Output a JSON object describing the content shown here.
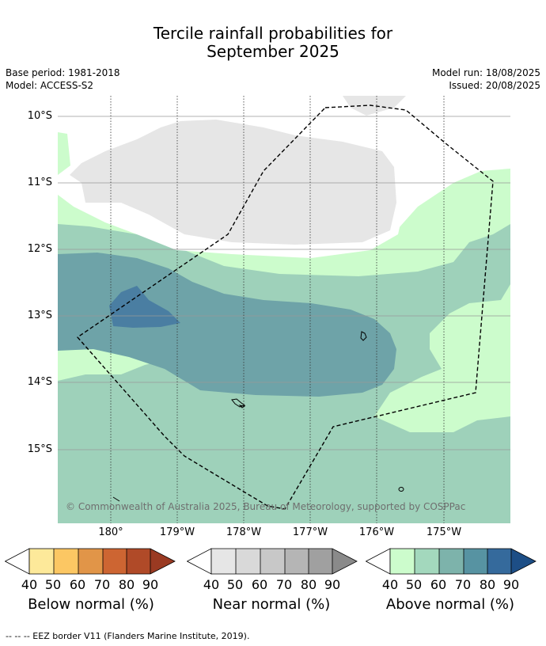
{
  "title_line1": "Tercile rainfall probabilities for",
  "title_line2": "September 2025",
  "base_period": "Base period: 1981-2018",
  "model": "Model: ACCESS-S2",
  "model_run": "Model run: 18/08/2025",
  "issued": "Issued: 20/08/2025",
  "lat_labels": [
    "10°S",
    "11°S",
    "12°S",
    "13°S",
    "14°S",
    "15°S"
  ],
  "lon_labels": [
    "180°",
    "179°W",
    "178°W",
    "177°W",
    "176°W",
    "175°W"
  ],
  "copyright": "© Commonwealth of Australia 2025, Bureau of Meteorology, supported by COSPPac",
  "legends": [
    {
      "title": "Below normal (%)",
      "ticks": [
        "40",
        "50",
        "60",
        "70",
        "80",
        "90"
      ],
      "colors": [
        "#fde99a",
        "#fcc763",
        "#e19548",
        "#cd6532",
        "#b04a28",
        "#9a3a22"
      ]
    },
    {
      "title": "Near normal (%)",
      "ticks": [
        "40",
        "50",
        "60",
        "70",
        "80",
        "90"
      ],
      "colors": [
        "#e6e6e6",
        "#d9d9d9",
        "#c8c8c8",
        "#b5b5b5",
        "#a0a0a0",
        "#8a8a8a"
      ]
    },
    {
      "title": "Above normal (%)",
      "ticks": [
        "40",
        "50",
        "60",
        "70",
        "80",
        "90"
      ],
      "colors": [
        "#ccfccc",
        "#a3d8bd",
        "#7db3ab",
        "#5793a2",
        "#356a9c",
        "#1d4e86"
      ]
    }
  ],
  "footnote": "--  --  -- EEZ border V11 (Flanders Marine Institute, 2019).",
  "map_colors": {
    "above_40": "#ccfccc",
    "above_50": "#9ed1ba",
    "above_60": "#6ea3a8",
    "above_70": "#4a7ea2",
    "near_40": "#e6e6e6",
    "no_dominant": "#ffffff"
  }
}
